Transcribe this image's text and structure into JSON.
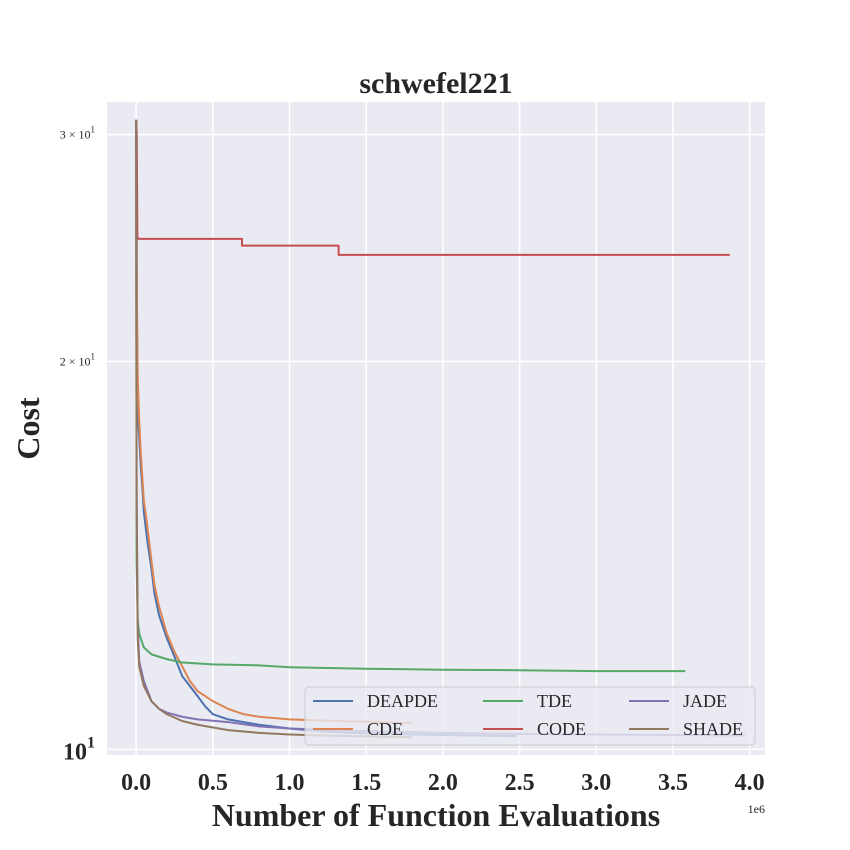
{
  "chart_data": {
    "type": "line",
    "title": "schwefel221",
    "xlabel": "Number of Function Evaluations",
    "ylabel": "Cost",
    "x_offset_label": "1e6",
    "xscale": "linear",
    "yscale": "log",
    "xlim": [
      -0.19,
      4.1
    ],
    "ylim": [
      9.9,
      31.8
    ],
    "xticks": [
      0.0,
      0.5,
      1.0,
      1.5,
      2.0,
      2.5,
      3.0,
      3.5,
      4.0
    ],
    "xtick_labels": [
      "0.0",
      "0.5",
      "1.0",
      "1.5",
      "2.0",
      "2.5",
      "3.0",
      "3.5",
      "4.0"
    ],
    "yticks": [
      {
        "value": 10,
        "base": "10",
        "exp": "1",
        "prefix": ""
      },
      {
        "value": 20,
        "base": "10",
        "exp": "1",
        "prefix": "2 × "
      },
      {
        "value": 30,
        "base": "10",
        "exp": "1",
        "prefix": "3 × "
      }
    ],
    "grid": true,
    "legend_position": "bottom-right",
    "legend_columns": 3,
    "series": [
      {
        "name": "DEAPDE",
        "color": "#4c72b0",
        "points": [
          [
            0,
            30.8
          ],
          [
            0.005,
            22
          ],
          [
            0.01,
            18.2
          ],
          [
            0.02,
            17.5
          ],
          [
            0.03,
            16.6
          ],
          [
            0.04,
            16
          ],
          [
            0.05,
            15.3
          ],
          [
            0.07,
            14.6
          ],
          [
            0.1,
            13.8
          ],
          [
            0.12,
            13.2
          ],
          [
            0.15,
            12.7
          ],
          [
            0.2,
            12.2
          ],
          [
            0.25,
            11.8
          ],
          [
            0.3,
            11.4
          ],
          [
            0.35,
            11.2
          ],
          [
            0.4,
            11
          ],
          [
            0.45,
            10.8
          ],
          [
            0.5,
            10.65
          ],
          [
            0.6,
            10.55
          ],
          [
            0.7,
            10.5
          ],
          [
            0.8,
            10.45
          ],
          [
            1.0,
            10.38
          ],
          [
            1.2,
            10.33
          ],
          [
            1.4,
            10.3
          ],
          [
            1.8,
            10.27
          ],
          [
            2.2,
            10.25
          ],
          [
            2.48,
            10.24
          ]
        ]
      },
      {
        "name": "CDE",
        "color": "#dd8452",
        "points": [
          [
            0,
            30.8
          ],
          [
            0.005,
            22.5
          ],
          [
            0.01,
            19.5
          ],
          [
            0.02,
            18
          ],
          [
            0.03,
            17
          ],
          [
            0.04,
            16.3
          ],
          [
            0.05,
            15.6
          ],
          [
            0.07,
            15
          ],
          [
            0.1,
            14
          ],
          [
            0.12,
            13.4
          ],
          [
            0.15,
            12.9
          ],
          [
            0.2,
            12.3
          ],
          [
            0.25,
            11.9
          ],
          [
            0.3,
            11.6
          ],
          [
            0.35,
            11.3
          ],
          [
            0.4,
            11.1
          ],
          [
            0.45,
            11
          ],
          [
            0.5,
            10.9
          ],
          [
            0.6,
            10.75
          ],
          [
            0.7,
            10.65
          ],
          [
            0.8,
            10.6
          ],
          [
            1.0,
            10.55
          ],
          [
            1.3,
            10.52
          ],
          [
            1.6,
            10.5
          ],
          [
            1.8,
            10.48
          ]
        ]
      },
      {
        "name": "TDE",
        "color": "#55a868",
        "points": [
          [
            0,
            30.8
          ],
          [
            0.003,
            14
          ],
          [
            0.01,
            12.6
          ],
          [
            0.02,
            12.3
          ],
          [
            0.05,
            12
          ],
          [
            0.1,
            11.85
          ],
          [
            0.2,
            11.75
          ],
          [
            0.3,
            11.68
          ],
          [
            0.5,
            11.64
          ],
          [
            0.8,
            11.62
          ],
          [
            1.0,
            11.58
          ],
          [
            1.5,
            11.55
          ],
          [
            2.0,
            11.53
          ],
          [
            2.5,
            11.52
          ],
          [
            3.0,
            11.5
          ],
          [
            3.58,
            11.5
          ]
        ]
      },
      {
        "name": "CODE",
        "color": "#c44e52",
        "points": [
          [
            0,
            30.8
          ],
          [
            0.004,
            30
          ],
          [
            0.008,
            25
          ],
          [
            0.015,
            24.9
          ],
          [
            0.69,
            24.9
          ],
          [
            0.69,
            24.6
          ],
          [
            1.32,
            24.6
          ],
          [
            1.32,
            24.2
          ],
          [
            3.87,
            24.2
          ]
        ]
      },
      {
        "name": "JADE",
        "color": "#8172b3",
        "points": [
          [
            0,
            30.8
          ],
          [
            0.003,
            16
          ],
          [
            0.01,
            12.5
          ],
          [
            0.02,
            11.7
          ],
          [
            0.05,
            11.3
          ],
          [
            0.1,
            10.9
          ],
          [
            0.15,
            10.75
          ],
          [
            0.2,
            10.68
          ],
          [
            0.3,
            10.6
          ],
          [
            0.4,
            10.55
          ],
          [
            0.6,
            10.5
          ],
          [
            0.8,
            10.42
          ],
          [
            1.0,
            10.38
          ],
          [
            1.5,
            10.33
          ],
          [
            2.0,
            10.3
          ],
          [
            2.5,
            10.28
          ],
          [
            3.0,
            10.27
          ],
          [
            3.5,
            10.26
          ],
          [
            3.97,
            10.25
          ]
        ]
      },
      {
        "name": "SHADE",
        "color": "#937860",
        "points": [
          [
            0,
            30.8
          ],
          [
            0.003,
            15.5
          ],
          [
            0.01,
            12.2
          ],
          [
            0.02,
            11.6
          ],
          [
            0.05,
            11.2
          ],
          [
            0.1,
            10.9
          ],
          [
            0.15,
            10.75
          ],
          [
            0.2,
            10.65
          ],
          [
            0.3,
            10.52
          ],
          [
            0.4,
            10.45
          ],
          [
            0.6,
            10.35
          ],
          [
            0.8,
            10.3
          ],
          [
            1.0,
            10.27
          ],
          [
            1.2,
            10.25
          ],
          [
            1.6,
            10.23
          ],
          [
            1.8,
            10.22
          ]
        ]
      }
    ]
  }
}
